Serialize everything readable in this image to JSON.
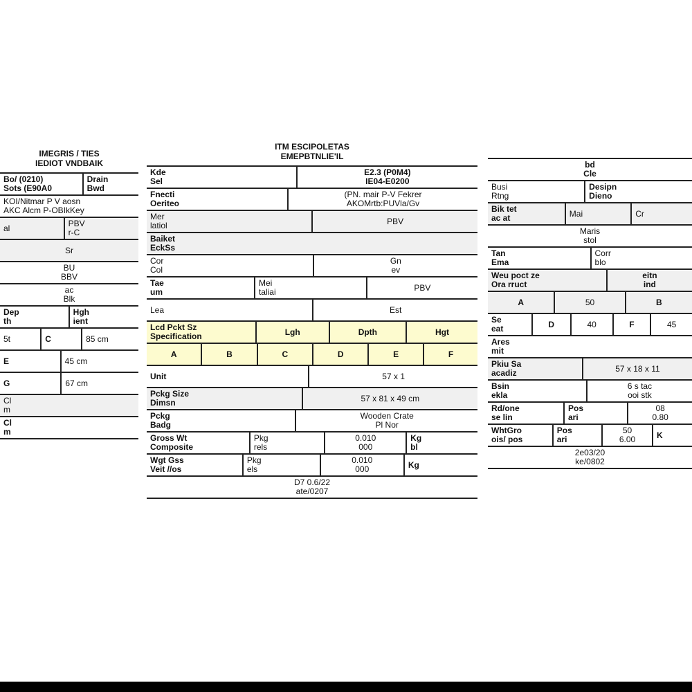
{
  "left": {
    "title": [
      "IMEGRIS / TIES",
      "IEDIOT VNDBAIK"
    ],
    "rows": [
      "Bo/ (0210)",
      "Sots (E90A0",
      "Drain",
      "Bwd",
      "KOI/Nitmar P V aosn",
      "AKC Alcm P-OBIkKey",
      "al",
      "PBV",
      "r-C",
      "Sr",
      "BU",
      "BBV",
      "ac",
      "Blk",
      "Dep",
      "th",
      "Hgh",
      "ient",
      "5t",
      "C",
      "85 cm",
      "E",
      "45 cm",
      "G",
      "67 cm",
      "Cl",
      "m",
      "Cl",
      "m"
    ]
  },
  "middle": {
    "title": [
      "ITM ESCIPOLETAS",
      "EMEPBTNLIE'IL"
    ],
    "rows": [
      "Kde",
      "Sel",
      "E2.3 (P0M4)",
      "IE04-E0200",
      "Fnecti",
      "Oeriteo",
      "(PN. mair P-V Fekrer",
      "AKOMrtb:PUVla/Gv",
      "Mer",
      "latiol",
      "PBV",
      "Baiket",
      "EckSs",
      "Cor",
      "Col",
      "Gn",
      "ev",
      "Tae",
      "um",
      "Mei",
      "taliai",
      "PBV",
      "Lea",
      "Est",
      "Lgh",
      "Dpth",
      "Hgt",
      "Lcd Pckt Sz",
      "Specification",
      "A",
      "B",
      "C",
      "D",
      "E",
      "F",
      "Unit",
      "57  x  1",
      "Pckg Size",
      "Dimsn",
      "57  x  81  x  49 cm",
      "Pckg",
      "Badg",
      "Wooden Crate",
      "Pl Nor",
      "Gross Wt",
      "Composite",
      "Pkg",
      "rels",
      "0.010",
      "000",
      "Kg",
      "bl",
      "Wgt Gss",
      "Veit //os",
      "Pkg",
      "els",
      "0.010",
      "000",
      "Kg",
      "D7 0.6/22",
      "ate/0207"
    ]
  },
  "right": {
    "rows": [
      "bd",
      "Cle",
      "Desipn",
      "Dieno",
      "Mai",
      "Bik tet",
      "ac at",
      "Cr",
      "Maris",
      "stol",
      "Tan",
      "Ema",
      "Corr",
      "blo",
      "eitn",
      "ind",
      "Weu poct ze",
      "Ora rruct",
      "A",
      "50",
      "B",
      "Se",
      "eat",
      "D",
      "40",
      "F",
      "45",
      "Ares",
      "mit",
      "Pkiu Sa",
      "acadiz",
      "57   x   18   x   11",
      "Bsin",
      "ekla",
      "6 s tac",
      "ooi stk",
      "Rd/one",
      "se lin",
      "Pos",
      "ari",
      "08",
      "0.80",
      "WhtGro",
      "ois/ pos",
      "Pos",
      "ari",
      "50",
      "6.00",
      "K",
      "2e03/20",
      "ke/0802",
      "Busi",
      "Rtng"
    ]
  },
  "colors": {
    "highlight": "#fdfbcf",
    "shade": "#f0f0f0",
    "line": "#222222"
  }
}
